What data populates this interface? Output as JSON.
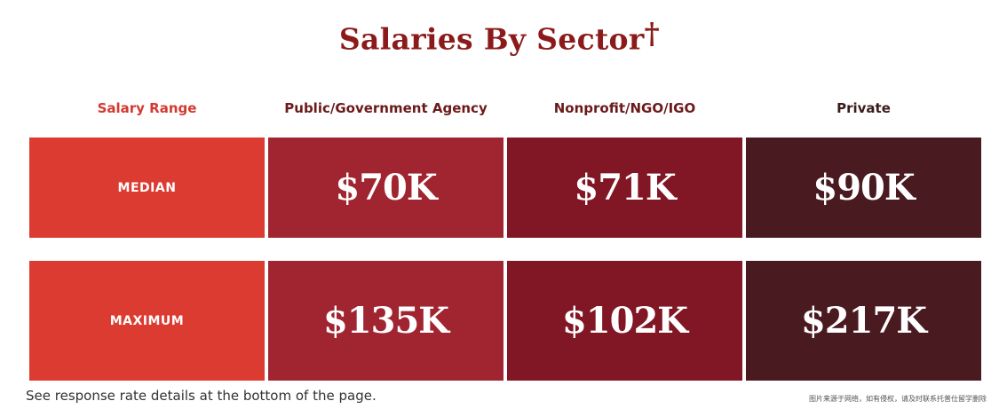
{
  "title": "Salaries By Sector",
  "title_mark": "†",
  "header": {
    "row_label_header": "Salary Range",
    "sectors": [
      "Public/Government Agency",
      "Nonprofit/NGO/IGO",
      "Private"
    ]
  },
  "colors": {
    "title": "#8b1a1a",
    "row_label_bg": "#dc3b31",
    "row_label_header_text": "#d33a2f",
    "sector_header_text": "#6b1a1a",
    "private_header_text": "#3a1a1a",
    "public_bg": "#a02530",
    "nonprofit_bg": "#811624",
    "private_bg": "#491a20"
  },
  "chart_data": {
    "type": "table",
    "title": "Salaries By Sector",
    "columns": [
      "Salary Range",
      "Public/Government Agency",
      "Nonprofit/NGO/IGO",
      "Private"
    ],
    "rows": [
      {
        "label": "MEDIAN",
        "values": [
          "$70K",
          "$71K",
          "$90K"
        ],
        "numeric": [
          70000,
          71000,
          90000
        ]
      },
      {
        "label": "MAXIMUM",
        "values": [
          "$135K",
          "$102K",
          "$217K"
        ],
        "numeric": [
          135000,
          102000,
          217000
        ]
      }
    ]
  },
  "footnote": "See response rate details at the bottom of the page.",
  "watermark": "图片来源于网络，如有侵权，请及时联系托普仕留学删除"
}
